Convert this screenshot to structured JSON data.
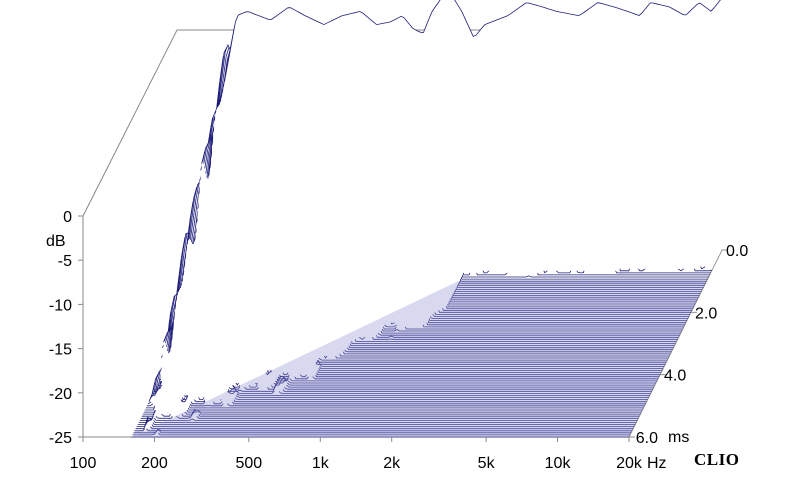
{
  "chart_data": {
    "type": "waterfall",
    "title": "",
    "y_unit": "dB",
    "x_unit": "Hz",
    "z_unit": "ms",
    "y_ticks": [
      0,
      -5,
      -10,
      -15,
      -20,
      -25
    ],
    "ylim": [
      -25,
      0
    ],
    "x_ticks": [
      "100",
      "200",
      "500",
      "1k",
      "2k",
      "5k",
      "10k",
      "20k"
    ],
    "x_tick_values": [
      100,
      200,
      500,
      1000,
      2000,
      5000,
      10000,
      20000
    ],
    "xlim": [
      100,
      20000
    ],
    "x_scale": "log",
    "z_ticks": [
      "0.0",
      "2.0",
      "4.0",
      "6.0"
    ],
    "z_tick_values": [
      0.0,
      2.0,
      4.0,
      6.0
    ],
    "zlim": [
      0,
      6
    ],
    "first_slice_response_db": {
      "freq_hz": [
        160,
        180,
        200,
        250,
        300,
        350,
        420,
        500,
        600,
        700,
        800,
        900,
        1000,
        1100,
        1200,
        1400,
        1600,
        1800,
        2000,
        2500,
        3000,
        3500,
        4000,
        5000,
        6000,
        7000,
        8000,
        9000,
        10000,
        12000,
        14000,
        16000,
        18000,
        20000
      ],
      "level_db": [
        -6,
        1.5,
        2,
        1,
        2.5,
        1.5,
        0.5,
        1.5,
        2,
        0.5,
        0.8,
        1.5,
        0,
        -0.5,
        2,
        4.5,
        2,
        -1,
        0.5,
        1.5,
        3,
        2.5,
        2,
        1.5,
        3,
        2.5,
        2,
        1.5,
        3,
        2.5,
        1.5,
        3,
        2,
        3.5
      ]
    },
    "decay_floor_db": -25,
    "grid": false,
    "legend": "none",
    "colors": {
      "trace": "#1f1f7a",
      "floor": "#8e8ed0",
      "axis": "#888888",
      "text": "#000000"
    }
  },
  "labels": {
    "y_unit": "dB",
    "x_unit": "Hz",
    "z_unit": "ms",
    "brand": "CLIO"
  }
}
